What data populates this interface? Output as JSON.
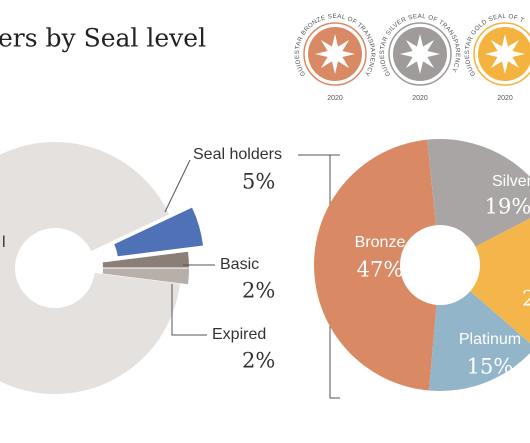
{
  "chart_data": [
    {
      "type": "pie",
      "title": "ers by Seal level",
      "categories": [
        "l",
        "Seal holders",
        "Basic",
        "Expired"
      ],
      "values": [
        91,
        5,
        2,
        2
      ],
      "value_labels": [
        null,
        "5%",
        "2%",
        "2%"
      ],
      "colors": [
        "#e4e1de",
        "#4f72b6",
        "#8b7e77",
        "#b7afa9"
      ]
    },
    {
      "type": "pie",
      "categories": [
        "Bronze",
        "Silver",
        null,
        "Platinum"
      ],
      "values": [
        47,
        19,
        19,
        15
      ],
      "value_labels": [
        "47%",
        "19%",
        null,
        "15%"
      ],
      "colors": [
        "#d98a65",
        "#a9a5a4",
        "#f4b54a",
        "#92b5ca"
      ],
      "annotations": [
        "2"
      ]
    }
  ],
  "badges": [
    {
      "text": "GUIDESTAR BRONZE SEAL OF TRANSPARENCY",
      "year": "2020",
      "color": "#d98a65"
    },
    {
      "text": "GUIDESTAR SILVER SEAL OF TRANSPARENCY",
      "year": "2020",
      "color": "#9e9b9a"
    },
    {
      "text": "GUIDESTAR GOLD SEAL OF T",
      "year": "2020",
      "color": "#f4b23f"
    }
  ]
}
